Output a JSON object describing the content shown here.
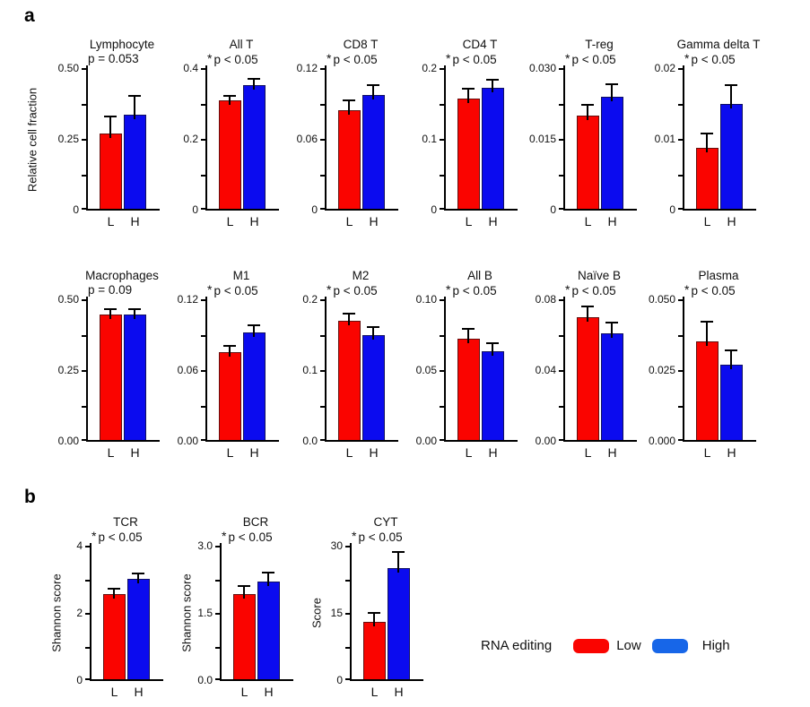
{
  "panels": {
    "a_label": "a",
    "b_label": "b"
  },
  "shared_ylabel": "Relative cell fraction",
  "legend": {
    "title": "RNA editing",
    "low_label": "Low",
    "high_label": "High",
    "low_color": "#fa0400",
    "high_color": "#1766e8"
  },
  "colors": {
    "bar_low": "#fa0400",
    "bar_high": "#0b0bef",
    "axis": "#000000"
  },
  "chart_data": [
    {
      "id": "lymphocyte",
      "panel": "a1",
      "type": "bar",
      "title": "Lymphocyte",
      "sig": "p = 0.053",
      "star": false,
      "ylabel": "",
      "ymax": 0.5,
      "ytick_labels": [
        "0.50",
        "0.25",
        "0"
      ],
      "categories": [
        "L",
        "H"
      ],
      "series": [
        {
          "name": "Low",
          "value": 0.27,
          "err": 0.06
        },
        {
          "name": "High",
          "value": 0.335,
          "err": 0.065
        }
      ]
    },
    {
      "id": "all-t",
      "panel": "a1",
      "type": "bar",
      "title": "All T",
      "sig": "p < 0.05",
      "star": true,
      "ylabel": "",
      "ymax": 0.4,
      "ytick_labels": [
        "0.4",
        "0.2",
        "0"
      ],
      "categories": [
        "L",
        "H"
      ],
      "series": [
        {
          "name": "Low",
          "value": 0.31,
          "err": 0.013
        },
        {
          "name": "High",
          "value": 0.352,
          "err": 0.017
        }
      ]
    },
    {
      "id": "cd8-t",
      "panel": "a1",
      "type": "bar",
      "title": "CD8 T",
      "sig": "p < 0.05",
      "star": true,
      "ylabel": "",
      "ymax": 0.12,
      "ytick_labels": [
        "0.12",
        "0.06",
        "0"
      ],
      "categories": [
        "L",
        "H"
      ],
      "series": [
        {
          "name": "Low",
          "value": 0.084,
          "err": 0.008
        },
        {
          "name": "High",
          "value": 0.097,
          "err": 0.008
        }
      ]
    },
    {
      "id": "cd4-t",
      "panel": "a1",
      "type": "bar",
      "title": "CD4 T",
      "sig": "p < 0.05",
      "star": true,
      "ylabel": "",
      "ymax": 0.2,
      "ytick_labels": [
        "0.2",
        "0.1",
        "0"
      ],
      "categories": [
        "L",
        "H"
      ],
      "series": [
        {
          "name": "Low",
          "value": 0.157,
          "err": 0.014
        },
        {
          "name": "High",
          "value": 0.172,
          "err": 0.012
        }
      ]
    },
    {
      "id": "t-reg",
      "panel": "a1",
      "type": "bar",
      "title": "T-reg",
      "sig": "p < 0.05",
      "star": true,
      "ylabel": "",
      "ymax": 0.03,
      "ytick_labels": [
        "0.030",
        "0.015",
        "0"
      ],
      "categories": [
        "L",
        "H"
      ],
      "series": [
        {
          "name": "Low",
          "value": 0.02,
          "err": 0.0023
        },
        {
          "name": "High",
          "value": 0.024,
          "err": 0.0027
        }
      ]
    },
    {
      "id": "gamma-delta-t",
      "panel": "a1",
      "type": "bar",
      "title": "Gamma delta T",
      "sig": "p < 0.05",
      "star": true,
      "ylabel": "",
      "ymax": 0.02,
      "ytick_labels": [
        "0.02",
        "0.01",
        "0"
      ],
      "categories": [
        "L",
        "H"
      ],
      "series": [
        {
          "name": "Low",
          "value": 0.0087,
          "err": 0.002
        },
        {
          "name": "High",
          "value": 0.0149,
          "err": 0.0026
        }
      ]
    },
    {
      "id": "macrophages",
      "panel": "a2",
      "type": "bar",
      "title": "Macrophages",
      "sig": "p = 0.09",
      "star": false,
      "ylabel": "",
      "ymax": 0.5,
      "ytick_labels": [
        "0.50",
        "0.25",
        "0.00"
      ],
      "categories": [
        "L",
        "H"
      ],
      "series": [
        {
          "name": "Low",
          "value": 0.445,
          "err": 0.02
        },
        {
          "name": "High",
          "value": 0.445,
          "err": 0.02
        }
      ]
    },
    {
      "id": "m1",
      "panel": "a2",
      "type": "bar",
      "title": "M1",
      "sig": "p < 0.05",
      "star": true,
      "ylabel": "",
      "ymax": 0.12,
      "ytick_labels": [
        "0.12",
        "0.06",
        "0.00"
      ],
      "categories": [
        "L",
        "H"
      ],
      "series": [
        {
          "name": "Low",
          "value": 0.075,
          "err": 0.005
        },
        {
          "name": "High",
          "value": 0.092,
          "err": 0.006
        }
      ]
    },
    {
      "id": "m2",
      "panel": "a2",
      "type": "bar",
      "title": "M2",
      "sig": "p < 0.05",
      "star": true,
      "ylabel": "",
      "ymax": 0.2,
      "ytick_labels": [
        "0.2",
        "0.1",
        "0.0"
      ],
      "categories": [
        "L",
        "H"
      ],
      "series": [
        {
          "name": "Low",
          "value": 0.17,
          "err": 0.01
        },
        {
          "name": "High",
          "value": 0.15,
          "err": 0.011
        }
      ]
    },
    {
      "id": "all-b",
      "panel": "a2",
      "type": "bar",
      "title": "All B",
      "sig": "p < 0.05",
      "star": true,
      "ylabel": "",
      "ymax": 0.1,
      "ytick_labels": [
        "0.10",
        "0.05",
        "0.00"
      ],
      "categories": [
        "L",
        "H"
      ],
      "series": [
        {
          "name": "Low",
          "value": 0.072,
          "err": 0.007
        },
        {
          "name": "High",
          "value": 0.063,
          "err": 0.006
        }
      ]
    },
    {
      "id": "naive-b",
      "panel": "a2",
      "type": "bar",
      "title": "Naïve B",
      "sig": "p < 0.05",
      "star": true,
      "ylabel": "",
      "ymax": 0.08,
      "ytick_labels": [
        "0.08",
        "0.04",
        "0.00"
      ],
      "categories": [
        "L",
        "H"
      ],
      "series": [
        {
          "name": "Low",
          "value": 0.07,
          "err": 0.006
        },
        {
          "name": "High",
          "value": 0.061,
          "err": 0.006
        }
      ]
    },
    {
      "id": "plasma",
      "panel": "a2",
      "type": "bar",
      "title": "Plasma",
      "sig": "p < 0.05",
      "star": true,
      "ylabel": "",
      "ymax": 0.05,
      "ytick_labels": [
        "0.050",
        "0.025",
        "0.000"
      ],
      "categories": [
        "L",
        "H"
      ],
      "series": [
        {
          "name": "Low",
          "value": 0.035,
          "err": 0.007
        },
        {
          "name": "High",
          "value": 0.027,
          "err": 0.005
        }
      ]
    },
    {
      "id": "tcr",
      "panel": "b",
      "type": "bar",
      "title": "TCR",
      "sig": "p < 0.05",
      "star": true,
      "ylabel": "Shannon score",
      "ymax": 4,
      "ytick_labels": [
        "4",
        "2",
        "0"
      ],
      "categories": [
        "L",
        "H"
      ],
      "series": [
        {
          "name": "Low",
          "value": 2.55,
          "err": 0.15
        },
        {
          "name": "High",
          "value": 3.0,
          "err": 0.17
        }
      ]
    },
    {
      "id": "bcr",
      "panel": "b",
      "type": "bar",
      "title": "BCR",
      "sig": "p < 0.05",
      "star": true,
      "ylabel": "Shannon score",
      "ymax": 3,
      "ytick_labels": [
        "3.0",
        "1.5",
        "0.0"
      ],
      "categories": [
        "L",
        "H"
      ],
      "series": [
        {
          "name": "Low",
          "value": 1.92,
          "err": 0.17
        },
        {
          "name": "High",
          "value": 2.2,
          "err": 0.19
        }
      ]
    },
    {
      "id": "cyt",
      "panel": "b",
      "type": "bar",
      "title": "CYT",
      "sig": "p < 0.05",
      "star": true,
      "ylabel": "Score",
      "ymax": 30,
      "ytick_labels": [
        "30",
        "15",
        "0"
      ],
      "categories": [
        "L",
        "H"
      ],
      "series": [
        {
          "name": "Low",
          "value": 13,
          "err": 2
        },
        {
          "name": "High",
          "value": 25,
          "err": 3.5
        }
      ]
    }
  ]
}
